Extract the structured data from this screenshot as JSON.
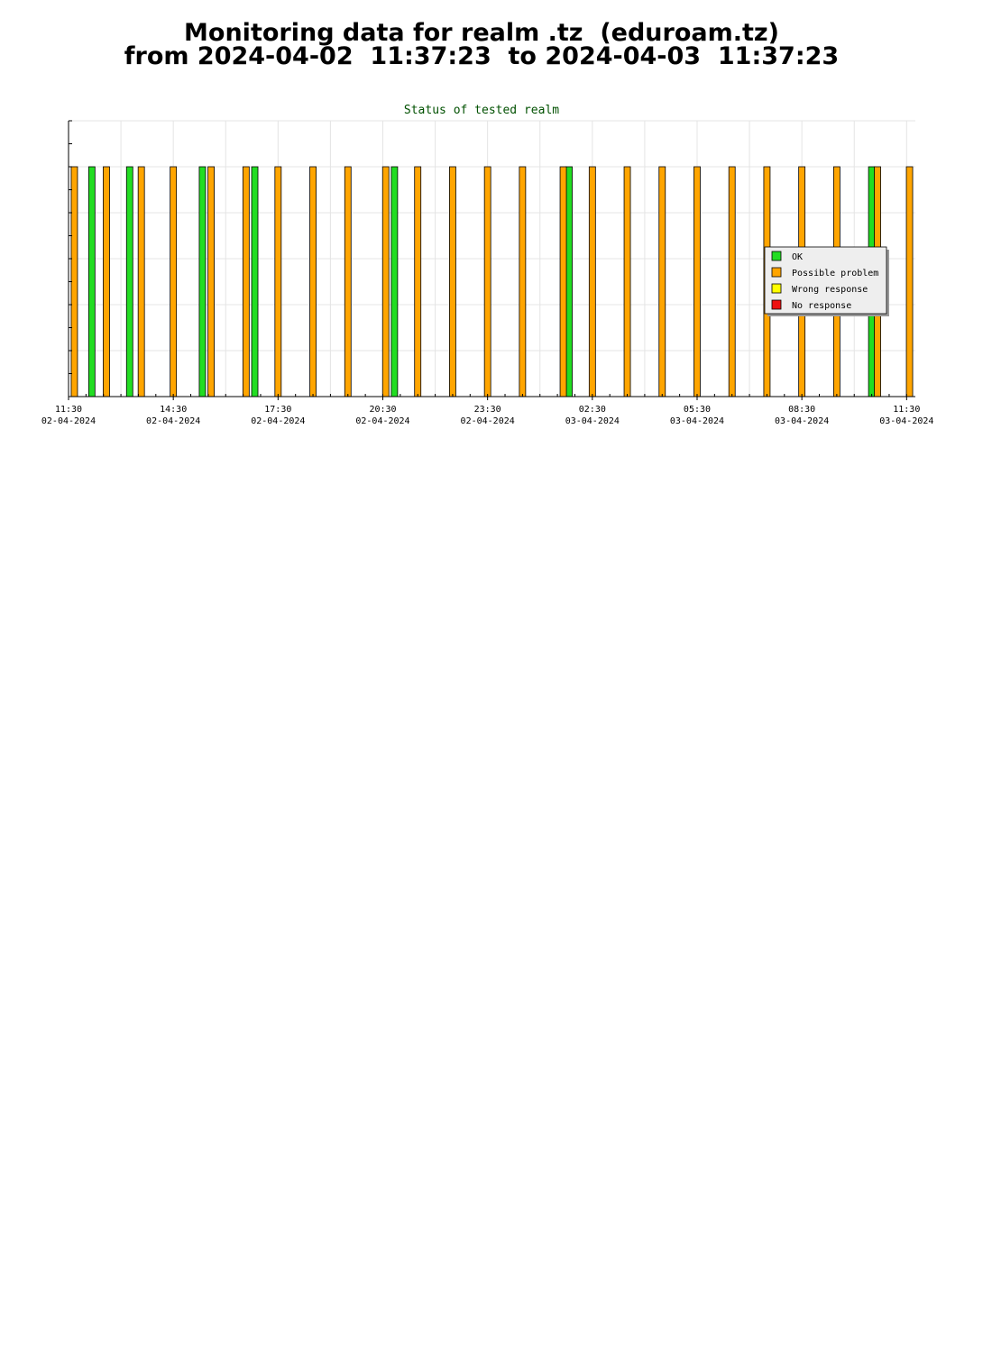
{
  "page": {
    "title_line1": "Monitoring data for realm .tz  (eduroam.tz)",
    "title_line2": "from 2024-04-02  11:37:23  to 2024-04-03  11:37:23"
  },
  "chart_data": {
    "type": "bar",
    "title": "Status of tested realm",
    "xlabel": "",
    "ylabel": "",
    "grid": true,
    "legend_position": "right",
    "x_range": [
      "2024-04-02 11:30",
      "2024-04-03 11:45"
    ],
    "x_ticks": [
      {
        "time": "2024-04-02 11:30",
        "label": "11:30",
        "date": "02-04-2024"
      },
      {
        "time": "2024-04-02 14:30",
        "label": "14:30",
        "date": "02-04-2024"
      },
      {
        "time": "2024-04-02 17:30",
        "label": "17:30",
        "date": "02-04-2024"
      },
      {
        "time": "2024-04-02 20:30",
        "label": "20:30",
        "date": "02-04-2024"
      },
      {
        "time": "2024-04-02 23:30",
        "label": "23:30",
        "date": "02-04-2024"
      },
      {
        "time": "2024-04-03 02:30",
        "label": "02:30",
        "date": "03-04-2024"
      },
      {
        "time": "2024-04-03 05:30",
        "label": "05:30",
        "date": "03-04-2024"
      },
      {
        "time": "2024-04-03 08:30",
        "label": "08:30",
        "date": "03-04-2024"
      },
      {
        "time": "2024-04-03 11:30",
        "label": "11:30",
        "date": "03-04-2024"
      }
    ],
    "series": [
      {
        "name": "OK",
        "color": "#22dd22",
        "times": [
          "2024-04-02 12:10",
          "2024-04-02 13:15",
          "2024-04-02 15:20",
          "2024-04-02 16:50",
          "2024-04-02 20:50",
          "2024-04-03 01:50",
          "2024-04-03 10:30"
        ]
      },
      {
        "name": "Possible problem",
        "color": "#ffa500",
        "times": [
          "2024-04-02 11:40",
          "2024-04-02 12:35",
          "2024-04-02 13:35",
          "2024-04-02 14:30",
          "2024-04-02 15:35",
          "2024-04-02 16:35",
          "2024-04-02 17:30",
          "2024-04-02 18:30",
          "2024-04-02 19:30",
          "2024-04-02 20:35",
          "2024-04-02 21:30",
          "2024-04-02 22:30",
          "2024-04-02 23:30",
          "2024-04-03 00:30",
          "2024-04-03 01:40",
          "2024-04-03 02:30",
          "2024-04-03 03:30",
          "2024-04-03 04:30",
          "2024-04-03 05:30",
          "2024-04-03 06:30",
          "2024-04-03 07:30",
          "2024-04-03 08:30",
          "2024-04-03 09:30",
          "2024-04-03 10:40",
          "2024-04-03 11:35"
        ]
      },
      {
        "name": "Wrong response",
        "color": "#ffff00",
        "times": []
      },
      {
        "name": "No response",
        "color": "#ee1111",
        "times": []
      }
    ]
  }
}
